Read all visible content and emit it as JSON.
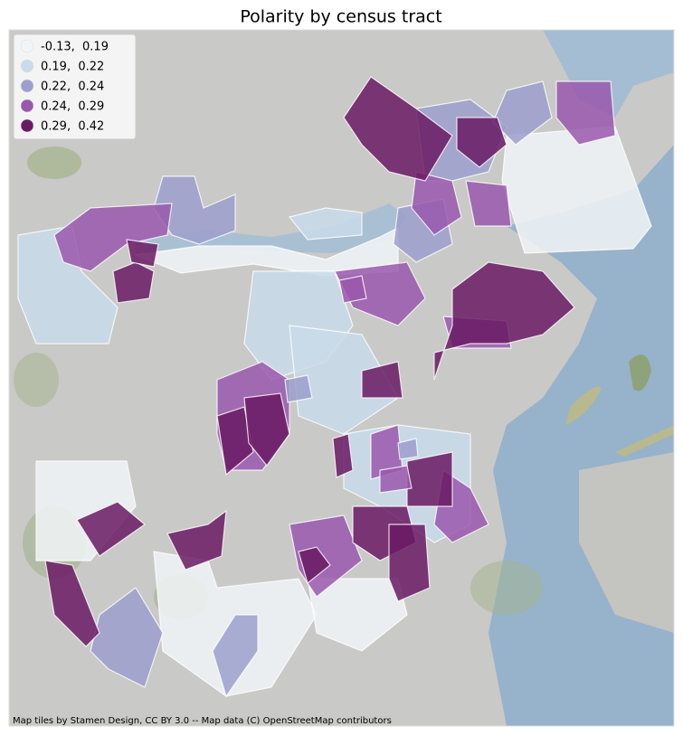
{
  "title": "Polarity by census tract",
  "legend": {
    "entries": [
      {
        "label": "-0.13,  0.19",
        "color": "#f1f5f7"
      },
      {
        "label": "0.19,  0.22",
        "color": "#c9dbea"
      },
      {
        "label": "0.22,  0.24",
        "color": "#9c9fcd"
      },
      {
        "label": "0.24,  0.29",
        "color": "#9a58ad"
      },
      {
        "label": "0.29,  0.42",
        "color": "#6a1a64"
      }
    ]
  },
  "attribution": "Map tiles by Stamen Design, CC BY 3.0 -- Map data (C) OpenStreetMap contributors"
}
